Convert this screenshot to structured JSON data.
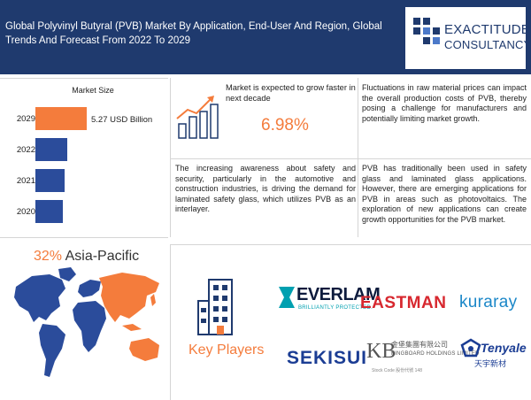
{
  "header": {
    "title": "Global Polyvinyl Butyral (PVB) Market By Application, End-User And Region, Global Trends And Forecast From 2022 To 2029",
    "logo_line1": "EXACTITUDE",
    "logo_line2": "CONSULTANCY"
  },
  "market_size": {
    "title": "Market Size",
    "years": [
      "2029",
      "2022",
      "2021",
      "2020"
    ],
    "value_2029": "5.27 USD Billion"
  },
  "chart_data": {
    "type": "bar",
    "title": "Market Size",
    "categories": [
      "2029",
      "2022",
      "2021",
      "2020"
    ],
    "values": [
      5.27,
      3.25,
      3.03,
      2.83
    ],
    "unit": "USD Billion",
    "orientation": "horizontal",
    "highlight_color": "#f47c3c",
    "bar_color": "#2b4c9b"
  },
  "region": {
    "percent": "32%",
    "name": "Asia-Pacific",
    "highlight_color": "#f47c3c",
    "other_color": "#2b4c9b"
  },
  "growth": {
    "text": "Market is expected to grow faster in next decade",
    "cagr": "6.98%"
  },
  "paragraphs": {
    "restraint": "Fluctuations in raw material prices can impact the overall production costs of PVB, thereby posing a challenge for manufacturers and potentially limiting market growth.",
    "driver": "The increasing awareness about safety and security, particularly in the automotive and construction industries, is driving the demand for laminated safety glass, which utilizes PVB as an interlayer.",
    "opportunity": "PVB has traditionally been used in safety glass and laminated glass applications. However, there are emerging applications for PVB in areas such as photovoltaics. The exploration of new applications can create growth opportunities for the PVB market."
  },
  "key_players": {
    "label": "Key Players",
    "everlam": "EVERLAM",
    "everlam_tag": "BRILLIANTLY PROTECTED.",
    "eastman": "EASTMAN",
    "kuraray": "kuraray",
    "sekisui": "SEKISUI",
    "kb_mark": "KB",
    "kb_cn": "金堡集團有限公司",
    "kb_en": "KINGBOARD HOLDINGS LIMITED",
    "kb_sub": "Stock Code 股份代號 148",
    "tenyale": "Tenyale",
    "tenyale_cn": "天宇新材"
  },
  "colors": {
    "header_bg": "#1f3a6e",
    "accent": "#f47c3c",
    "primary_blue": "#2b4c9b"
  }
}
